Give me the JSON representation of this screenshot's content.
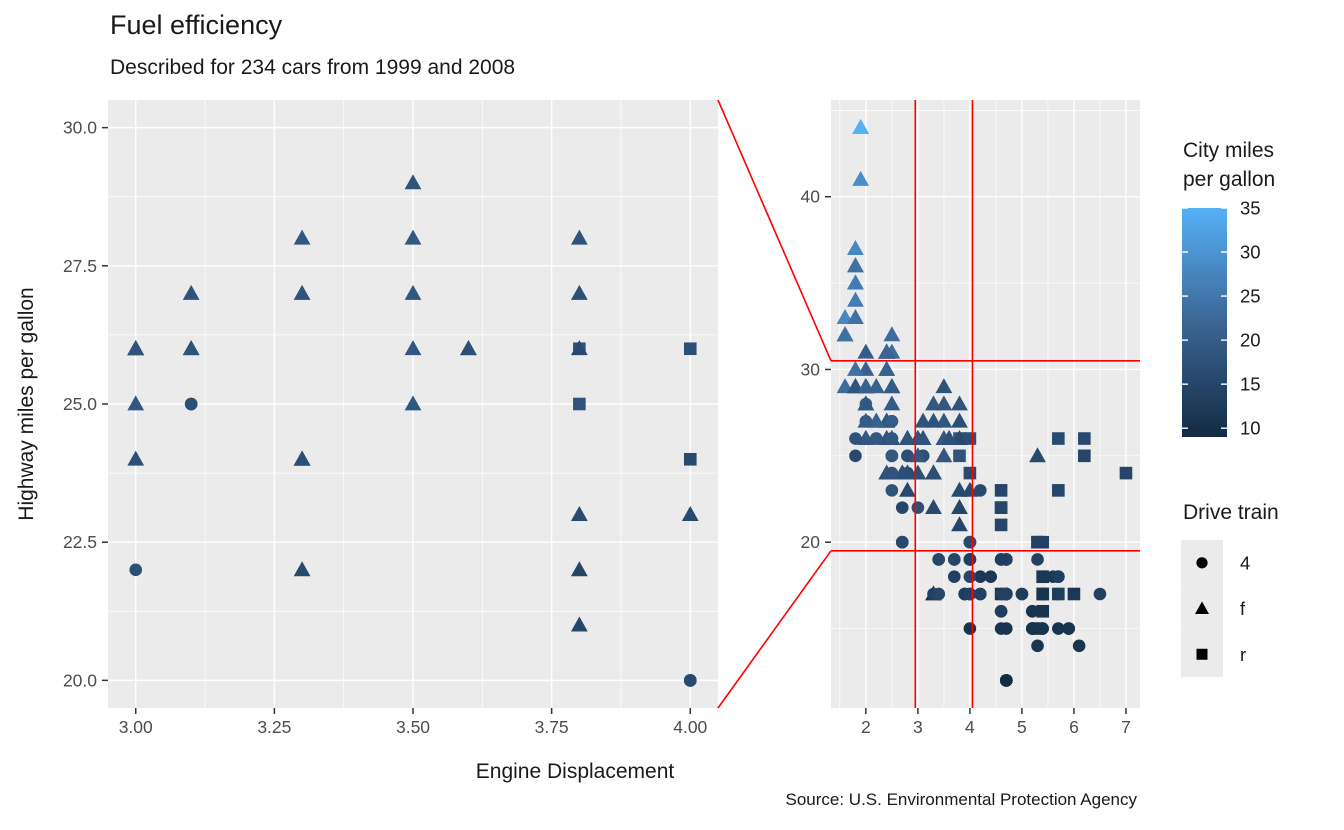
{
  "chart_data": {
    "type": "scatter",
    "title": "Fuel efficiency",
    "subtitle": "Described for 234 cars from 1999 and 2008",
    "caption": "Source: U.S. Environmental Protection Agency",
    "xlabel": "Engine Displacement",
    "ylabel": "Highway miles per gallon",
    "colors": {
      "low": "#132B43",
      "mid": "#3B6594",
      "high": "#56B1F7",
      "panel_bg": "#EBEBEB",
      "grid": "#FFFFFF",
      "zoom_outline": "#FF0000",
      "axis_text": "#4D4D4D",
      "text": "#1A1A1A",
      "tick_mark": "#333333",
      "legend_key_bg": "#EBEBEB",
      "legend_glyph": "#000000"
    },
    "color_scale": {
      "field": "cty",
      "domain": [
        9,
        35
      ]
    },
    "panels": {
      "zoom": {
        "xlim": [
          2.95,
          4.05
        ],
        "ylim": [
          19.5,
          30.5
        ],
        "x_ticks": [
          3,
          3.25,
          3.5,
          3.75,
          4
        ],
        "x_tick_labels": [
          "3.00",
          "3.25",
          "3.50",
          "3.75",
          "4.00"
        ],
        "x_minor": [
          3.125,
          3.375,
          3.625,
          3.875
        ],
        "y_ticks": [
          30,
          27.5,
          25,
          22.5,
          20
        ],
        "y_tick_labels": [
          "30.0",
          "27.5",
          "25.0",
          "22.5",
          "20.0"
        ],
        "y_minor": [
          28.75,
          26.25,
          23.75,
          21.25
        ]
      },
      "overview": {
        "xlim": [
          1.33,
          7.27
        ],
        "ylim": [
          10.4,
          45.6
        ],
        "x_ticks": [
          2,
          3,
          4,
          5,
          6,
          7
        ],
        "x_tick_labels": [
          "2",
          "3",
          "4",
          "5",
          "6",
          "7"
        ],
        "x_minor": [
          1.5,
          2.5,
          3.5,
          4.5,
          5.5,
          6.5
        ],
        "y_ticks": [
          40,
          30,
          20
        ],
        "y_tick_labels": [
          "40",
          "30",
          "20"
        ],
        "y_minor": [
          45,
          35,
          25,
          15
        ],
        "zoom_region": {
          "x": [
            2.95,
            4.05
          ],
          "y": [
            19.5,
            30.5
          ]
        }
      }
    },
    "legend_color": {
      "title_lines": [
        "City miles",
        "per gallon"
      ],
      "ticks": [
        35,
        30,
        25,
        20,
        15,
        10
      ],
      "domain": [
        9,
        35
      ]
    },
    "legend_shape": {
      "title": "Drive train",
      "items": [
        {
          "shape": "circle",
          "label": "4"
        },
        {
          "shape": "triangle",
          "label": "f"
        },
        {
          "shape": "square",
          "label": "r"
        }
      ]
    },
    "series_fields": [
      "displ",
      "hwy",
      "cty",
      "drv"
    ],
    "points": [
      [
        1.8,
        29,
        18,
        "f"
      ],
      [
        1.8,
        29,
        21,
        "f"
      ],
      [
        2.0,
        31,
        20,
        "f"
      ],
      [
        2.0,
        30,
        21,
        "f"
      ],
      [
        2.8,
        26,
        16,
        "f"
      ],
      [
        2.8,
        26,
        18,
        "f"
      ],
      [
        3.1,
        27,
        18,
        "f"
      ],
      [
        1.8,
        26,
        18,
        "4"
      ],
      [
        1.8,
        25,
        16,
        "4"
      ],
      [
        2.0,
        28,
        20,
        "4"
      ],
      [
        2.0,
        27,
        19,
        "4"
      ],
      [
        2.8,
        25,
        15,
        "4"
      ],
      [
        2.8,
        25,
        17,
        "4"
      ],
      [
        3.1,
        25,
        17,
        "4"
      ],
      [
        3.1,
        25,
        15,
        "4"
      ],
      [
        2.8,
        24,
        15,
        "4"
      ],
      [
        3.1,
        25,
        17,
        "4"
      ],
      [
        4.2,
        23,
        16,
        "4"
      ],
      [
        5.3,
        20,
        14,
        "r"
      ],
      [
        5.3,
        15,
        11,
        "r"
      ],
      [
        5.3,
        20,
        14,
        "r"
      ],
      [
        5.7,
        17,
        13,
        "r"
      ],
      [
        6.0,
        17,
        12,
        "r"
      ],
      [
        5.7,
        26,
        16,
        "r"
      ],
      [
        5.7,
        23,
        15,
        "r"
      ],
      [
        6.2,
        26,
        16,
        "r"
      ],
      [
        6.2,
        25,
        15,
        "r"
      ],
      [
        7.0,
        24,
        15,
        "r"
      ],
      [
        5.3,
        19,
        14,
        "4"
      ],
      [
        5.3,
        14,
        11,
        "4"
      ],
      [
        5.7,
        15,
        11,
        "4"
      ],
      [
        6.5,
        17,
        14,
        "4"
      ],
      [
        2.4,
        27,
        19,
        "f"
      ],
      [
        2.4,
        30,
        22,
        "f"
      ],
      [
        3.1,
        26,
        18,
        "f"
      ],
      [
        3.5,
        29,
        18,
        "f"
      ],
      [
        3.6,
        26,
        17,
        "f"
      ],
      [
        2.4,
        24,
        18,
        "f"
      ],
      [
        3.0,
        24,
        17,
        "f"
      ],
      [
        3.3,
        22,
        16,
        "f"
      ],
      [
        3.3,
        24,
        17,
        "f"
      ],
      [
        3.3,
        24,
        17,
        "f"
      ],
      [
        3.3,
        24,
        17,
        "f"
      ],
      [
        3.3,
        17,
        11,
        "f"
      ],
      [
        3.8,
        22,
        15,
        "f"
      ],
      [
        3.8,
        21,
        15,
        "f"
      ],
      [
        3.8,
        23,
        16,
        "f"
      ],
      [
        4.0,
        23,
        16,
        "f"
      ],
      [
        3.7,
        19,
        15,
        "4"
      ],
      [
        3.7,
        18,
        14,
        "4"
      ],
      [
        3.9,
        17,
        13,
        "4"
      ],
      [
        3.9,
        17,
        13,
        "4"
      ],
      [
        4.7,
        19,
        14,
        "4"
      ],
      [
        4.7,
        19,
        14,
        "4"
      ],
      [
        4.7,
        12,
        9,
        "4"
      ],
      [
        5.2,
        15,
        11,
        "4"
      ],
      [
        5.2,
        15,
        11,
        "4"
      ],
      [
        3.9,
        17,
        13,
        "4"
      ],
      [
        4.7,
        17,
        13,
        "4"
      ],
      [
        4.7,
        12,
        9,
        "4"
      ],
      [
        4.7,
        17,
        13,
        "4"
      ],
      [
        5.2,
        16,
        11,
        "4"
      ],
      [
        5.7,
        18,
        13,
        "4"
      ],
      [
        5.9,
        15,
        11,
        "4"
      ],
      [
        4.7,
        17,
        13,
        "4"
      ],
      [
        4.7,
        12,
        9,
        "4"
      ],
      [
        4.7,
        17,
        13,
        "4"
      ],
      [
        4.7,
        17,
        13,
        "4"
      ],
      [
        4.7,
        12,
        9,
        "4"
      ],
      [
        4.7,
        17,
        13,
        "4"
      ],
      [
        5.2,
        15,
        11,
        "4"
      ],
      [
        5.2,
        16,
        11,
        "4"
      ],
      [
        5.7,
        17,
        13,
        "4"
      ],
      [
        5.9,
        15,
        11,
        "4"
      ],
      [
        4.6,
        17,
        11,
        "r"
      ],
      [
        5.4,
        17,
        11,
        "r"
      ],
      [
        5.4,
        18,
        12,
        "r"
      ],
      [
        4.0,
        17,
        14,
        "4"
      ],
      [
        4.0,
        17,
        14,
        "4"
      ],
      [
        4.0,
        19,
        13,
        "4"
      ],
      [
        4.0,
        19,
        13,
        "4"
      ],
      [
        4.6,
        19,
        13,
        "4"
      ],
      [
        5.0,
        17,
        13,
        "4"
      ],
      [
        4.2,
        17,
        14,
        "4"
      ],
      [
        4.2,
        17,
        14,
        "4"
      ],
      [
        4.6,
        16,
        13,
        "4"
      ],
      [
        4.6,
        16,
        13,
        "4"
      ],
      [
        4.6,
        17,
        13,
        "4"
      ],
      [
        5.4,
        15,
        11,
        "4"
      ],
      [
        5.4,
        17,
        13,
        "4"
      ],
      [
        3.8,
        26,
        18,
        "r"
      ],
      [
        3.8,
        25,
        18,
        "r"
      ],
      [
        4.0,
        24,
        16,
        "r"
      ],
      [
        4.0,
        26,
        17,
        "r"
      ],
      [
        4.6,
        21,
        15,
        "r"
      ],
      [
        4.6,
        22,
        15,
        "r"
      ],
      [
        4.6,
        23,
        15,
        "r"
      ],
      [
        4.6,
        22,
        15,
        "r"
      ],
      [
        5.4,
        20,
        14,
        "r"
      ],
      [
        1.6,
        33,
        28,
        "f"
      ],
      [
        1.6,
        32,
        24,
        "f"
      ],
      [
        1.6,
        32,
        25,
        "f"
      ],
      [
        1.6,
        29,
        23,
        "f"
      ],
      [
        1.6,
        32,
        24,
        "f"
      ],
      [
        1.8,
        34,
        26,
        "f"
      ],
      [
        1.8,
        36,
        25,
        "f"
      ],
      [
        1.8,
        36,
        24,
        "f"
      ],
      [
        2.0,
        29,
        21,
        "f"
      ],
      [
        2.4,
        26,
        18,
        "f"
      ],
      [
        2.4,
        27,
        18,
        "f"
      ],
      [
        2.4,
        30,
        21,
        "f"
      ],
      [
        2.4,
        31,
        21,
        "f"
      ],
      [
        2.5,
        26,
        18,
        "f"
      ],
      [
        2.5,
        26,
        18,
        "f"
      ],
      [
        3.3,
        28,
        19,
        "f"
      ],
      [
        2.0,
        26,
        19,
        "f"
      ],
      [
        2.0,
        29,
        19,
        "f"
      ],
      [
        2.0,
        28,
        20,
        "f"
      ],
      [
        2.0,
        27,
        20,
        "f"
      ],
      [
        2.7,
        24,
        17,
        "f"
      ],
      [
        2.7,
        24,
        16,
        "f"
      ],
      [
        2.7,
        24,
        17,
        "f"
      ],
      [
        3.0,
        22,
        17,
        "4"
      ],
      [
        3.7,
        19,
        15,
        "4"
      ],
      [
        4.0,
        20,
        15,
        "4"
      ],
      [
        4.7,
        17,
        14,
        "4"
      ],
      [
        4.7,
        12,
        9,
        "4"
      ],
      [
        4.7,
        19,
        14,
        "4"
      ],
      [
        5.7,
        18,
        13,
        "4"
      ],
      [
        6.1,
        14,
        11,
        "4"
      ],
      [
        4.0,
        15,
        11,
        "4"
      ],
      [
        4.2,
        18,
        12,
        "4"
      ],
      [
        4.4,
        18,
        12,
        "4"
      ],
      [
        4.6,
        15,
        11,
        "4"
      ],
      [
        5.4,
        17,
        11,
        "r"
      ],
      [
        5.4,
        16,
        11,
        "r"
      ],
      [
        5.4,
        18,
        12,
        "r"
      ],
      [
        4.0,
        17,
        14,
        "4"
      ],
      [
        4.0,
        19,
        13,
        "4"
      ],
      [
        4.6,
        19,
        13,
        "4"
      ],
      [
        5.0,
        17,
        13,
        "4"
      ],
      [
        2.4,
        27,
        19,
        "f"
      ],
      [
        2.4,
        26,
        18,
        "f"
      ],
      [
        2.5,
        31,
        23,
        "f"
      ],
      [
        2.5,
        32,
        23,
        "f"
      ],
      [
        3.5,
        27,
        19,
        "f"
      ],
      [
        3.5,
        26,
        19,
        "f"
      ],
      [
        3.0,
        26,
        18,
        "f"
      ],
      [
        3.0,
        25,
        19,
        "f"
      ],
      [
        3.5,
        25,
        19,
        "f"
      ],
      [
        3.3,
        17,
        14,
        "4"
      ],
      [
        4.0,
        20,
        14,
        "4"
      ],
      [
        5.6,
        18,
        12,
        "4"
      ],
      [
        3.1,
        26,
        18,
        "f"
      ],
      [
        3.8,
        26,
        16,
        "f"
      ],
      [
        3.8,
        27,
        17,
        "f"
      ],
      [
        3.8,
        28,
        18,
        "f"
      ],
      [
        5.3,
        25,
        16,
        "f"
      ],
      [
        2.5,
        25,
        18,
        "4"
      ],
      [
        2.5,
        24,
        18,
        "4"
      ],
      [
        2.5,
        27,
        20,
        "4"
      ],
      [
        2.5,
        25,
        19,
        "4"
      ],
      [
        2.5,
        26,
        20,
        "4"
      ],
      [
        2.5,
        23,
        18,
        "4"
      ],
      [
        2.2,
        26,
        21,
        "4"
      ],
      [
        2.2,
        26,
        19,
        "4"
      ],
      [
        2.5,
        26,
        19,
        "4"
      ],
      [
        2.5,
        26,
        19,
        "4"
      ],
      [
        2.5,
        27,
        20,
        "4"
      ],
      [
        2.5,
        25,
        20,
        "4"
      ],
      [
        2.5,
        25,
        19,
        "4"
      ],
      [
        2.5,
        27,
        20,
        "4"
      ],
      [
        2.5,
        26,
        19,
        "4"
      ],
      [
        2.7,
        20,
        15,
        "4"
      ],
      [
        2.7,
        20,
        16,
        "4"
      ],
      [
        3.4,
        19,
        15,
        "4"
      ],
      [
        3.4,
        17,
        15,
        "4"
      ],
      [
        4.0,
        20,
        16,
        "4"
      ],
      [
        4.7,
        17,
        14,
        "4"
      ],
      [
        2.2,
        29,
        21,
        "f"
      ],
      [
        2.2,
        27,
        21,
        "f"
      ],
      [
        2.4,
        31,
        21,
        "f"
      ],
      [
        2.4,
        31,
        21,
        "f"
      ],
      [
        3.0,
        26,
        18,
        "f"
      ],
      [
        3.0,
        26,
        18,
        "f"
      ],
      [
        3.5,
        28,
        19,
        "f"
      ],
      [
        2.2,
        27,
        21,
        "f"
      ],
      [
        2.2,
        29,
        21,
        "f"
      ],
      [
        2.4,
        31,
        21,
        "f"
      ],
      [
        2.4,
        31,
        22,
        "f"
      ],
      [
        3.0,
        26,
        18,
        "f"
      ],
      [
        3.0,
        26,
        18,
        "f"
      ],
      [
        3.3,
        27,
        18,
        "f"
      ],
      [
        1.8,
        30,
        24,
        "f"
      ],
      [
        1.8,
        33,
        24,
        "f"
      ],
      [
        1.8,
        35,
        26,
        "f"
      ],
      [
        1.8,
        35,
        26,
        "f"
      ],
      [
        1.8,
        37,
        28,
        "f"
      ],
      [
        4.7,
        15,
        11,
        "4"
      ],
      [
        5.7,
        18,
        13,
        "4"
      ],
      [
        2.7,
        20,
        15,
        "4"
      ],
      [
        2.7,
        20,
        16,
        "4"
      ],
      [
        2.7,
        22,
        15,
        "4"
      ],
      [
        3.4,
        17,
        15,
        "4"
      ],
      [
        3.4,
        19,
        15,
        "4"
      ],
      [
        4.0,
        20,
        16,
        "4"
      ],
      [
        4.0,
        18,
        15,
        "4"
      ],
      [
        2.0,
        29,
        21,
        "f"
      ],
      [
        2.0,
        26,
        19,
        "f"
      ],
      [
        2.0,
        29,
        21,
        "f"
      ],
      [
        2.0,
        29,
        22,
        "f"
      ],
      [
        2.8,
        24,
        17,
        "f"
      ],
      [
        1.9,
        44,
        33,
        "f"
      ],
      [
        2.0,
        29,
        21,
        "f"
      ],
      [
        2.0,
        26,
        19,
        "f"
      ],
      [
        2.0,
        29,
        21,
        "f"
      ],
      [
        2.0,
        29,
        22,
        "f"
      ],
      [
        2.5,
        29,
        21,
        "f"
      ],
      [
        2.5,
        29,
        21,
        "f"
      ],
      [
        2.8,
        24,
        17,
        "f"
      ],
      [
        2.8,
        23,
        16,
        "f"
      ],
      [
        1.9,
        44,
        35,
        "f"
      ],
      [
        1.9,
        41,
        29,
        "f"
      ],
      [
        2.0,
        26,
        19,
        "f"
      ],
      [
        2.0,
        29,
        21,
        "f"
      ],
      [
        2.5,
        28,
        20,
        "f"
      ],
      [
        2.5,
        29,
        20,
        "f"
      ],
      [
        1.8,
        29,
        21,
        "f"
      ],
      [
        1.8,
        29,
        18,
        "f"
      ],
      [
        2.0,
        28,
        19,
        "f"
      ],
      [
        2.0,
        29,
        21,
        "f"
      ],
      [
        2.8,
        26,
        16,
        "f"
      ],
      [
        2.8,
        26,
        18,
        "f"
      ],
      [
        3.6,
        26,
        17,
        "f"
      ]
    ]
  }
}
